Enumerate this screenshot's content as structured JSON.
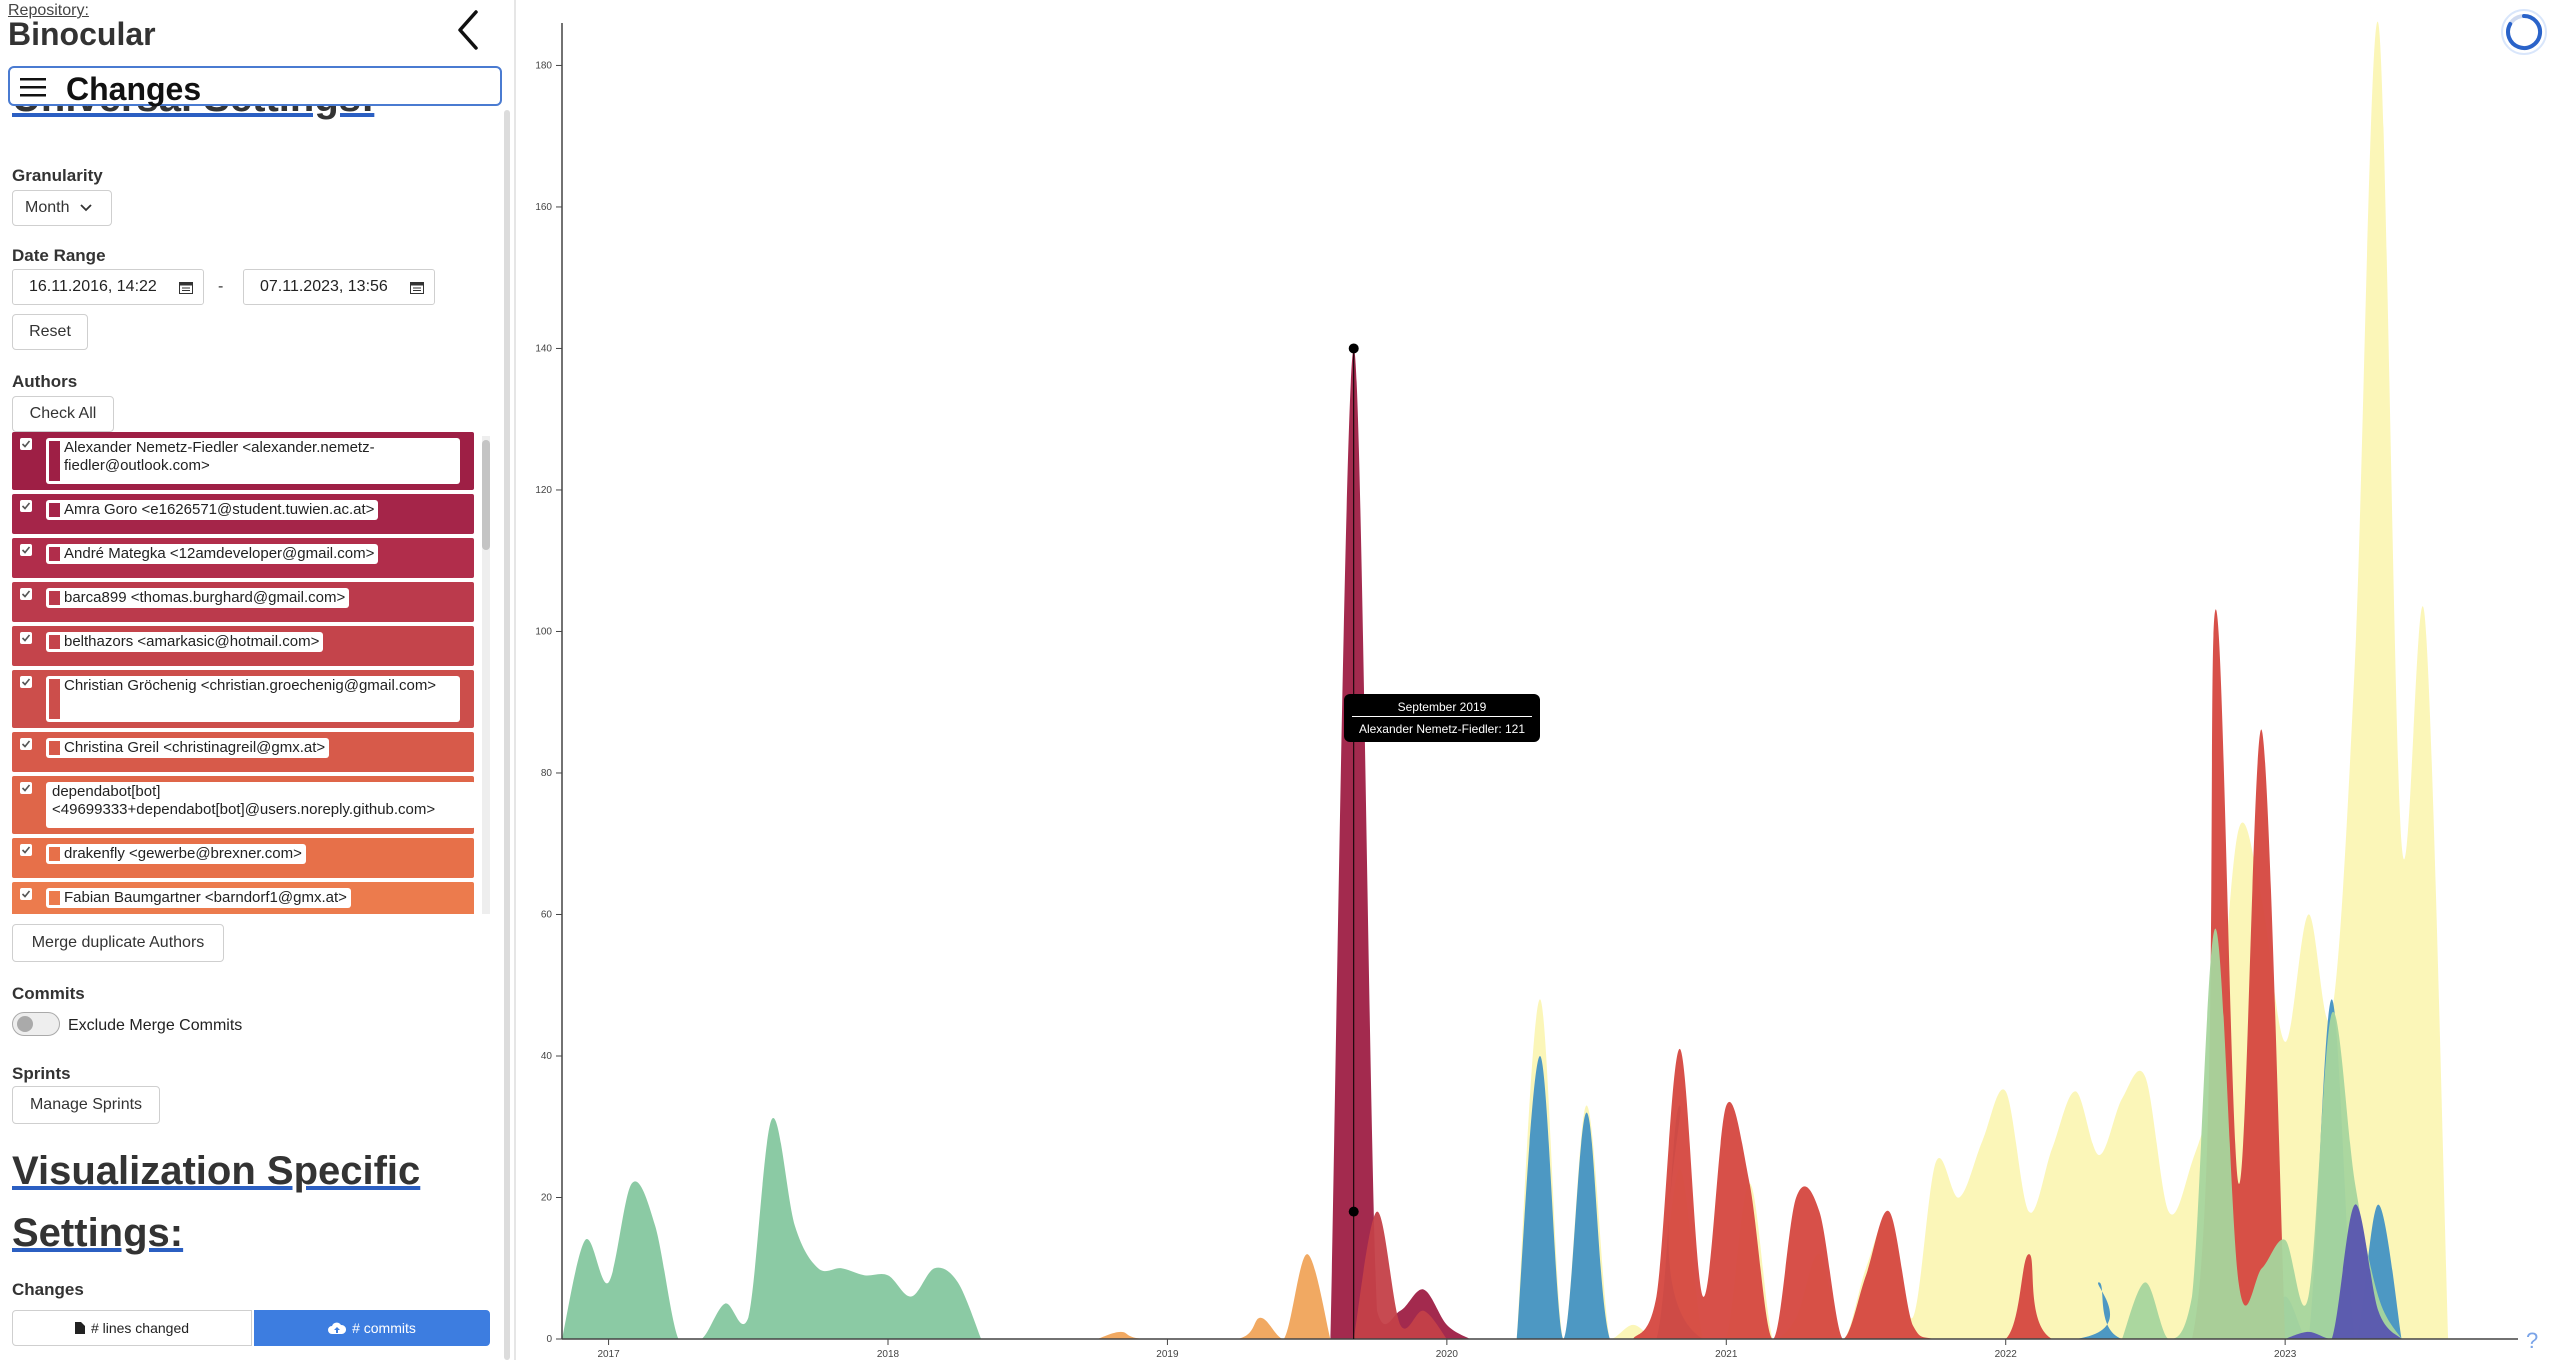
{
  "header": {
    "repository_label": "Repository:",
    "repository_name": "Binocular",
    "page_title": "Changes"
  },
  "universal_settings": {
    "heading": "Universal Settings:",
    "granularity_label": "Granularity",
    "granularity_value": "Month",
    "date_range_label": "Date Range",
    "date_from": "16.11.2016, 14:22",
    "date_separator": "-",
    "date_to": "07.11.2023, 13:56",
    "reset_label": "Reset",
    "authors_label": "Authors",
    "check_all_label": "Check All",
    "authors": [
      {
        "name": "Alexander Nemetz-Fiedler <alexander.nemetz-fiedler@outlook.com>",
        "color": "#9e1f45"
      },
      {
        "name": "Amra Goro <e1626571@student.tuwien.ac.at>",
        "color": "#a52549"
      },
      {
        "name": "André Mategka <12amdeveloper@gmail.com>",
        "color": "#b12d4b"
      },
      {
        "name": "barca899 <thomas.burghard@gmail.com>",
        "color": "#bb3a4c"
      },
      {
        "name": "belthazors <amarkasic@hotmail.com>",
        "color": "#c4444b"
      },
      {
        "name": "Christian Gröchenig <christian.groechenig@gmail.com>",
        "color": "#cc4e4b"
      },
      {
        "name": "Christina Greil <christinagreil@gmx.at>",
        "color": "#d75a4a"
      },
      {
        "name": "dependabot[bot] <49699333+dependabot[bot]@users.noreply.github.com>",
        "color": "#df6649"
      },
      {
        "name": "drakenfly <gewerbe@brexner.com>",
        "color": "#e77049"
      },
      {
        "name": "Fabian Baumgartner <barndorf1@gmx.at>",
        "color": "#ec7b4d"
      }
    ],
    "merge_authors_label": "Merge duplicate Authors",
    "commits_label": "Commits",
    "exclude_merge_label": "Exclude Merge Commits",
    "exclude_merge_on": false,
    "sprints_label": "Sprints",
    "manage_sprints_label": "Manage Sprints"
  },
  "viz_settings": {
    "heading": "Visualization Specific Settings:",
    "changes_label": "Changes",
    "option_lines": "# lines changed",
    "option_commits": "# commits",
    "selected": "# commits"
  },
  "tooltip": {
    "title": "September 2019",
    "entry": "Alexander Nemetz-Fiedler: 121"
  },
  "help_label": "?",
  "colors": {
    "accent": "#4a7bd1",
    "selected_button": "#3d7de0"
  },
  "chart_data": {
    "type": "area",
    "y_ticks": [
      "0",
      "20",
      "40",
      "60",
      "80",
      "100",
      "120",
      "140",
      "160",
      "180"
    ],
    "x_ticks": [
      "2017",
      "2018",
      "2019",
      "2020",
      "2021",
      "2022",
      "2023"
    ],
    "ylim": [
      0,
      186
    ],
    "x_start": "2016-11",
    "x_end": "2023-11",
    "highlight": {
      "x": "2019-09",
      "y_top": 140,
      "y_bottom": 18
    },
    "series": [
      {
        "color": "#85c79f",
        "points": [
          [
            "2016-11",
            0
          ],
          [
            "2016-12",
            14
          ],
          [
            "2017-01",
            8
          ],
          [
            "2017-02",
            22
          ],
          [
            "2017-03",
            16
          ],
          [
            "2017-04",
            0
          ],
          [
            "2017-05",
            0
          ],
          [
            "2017-06",
            5
          ],
          [
            "2017-07",
            3
          ],
          [
            "2017-08",
            31
          ],
          [
            "2017-09",
            16
          ],
          [
            "2017-10",
            10
          ],
          [
            "2017-11",
            10
          ],
          [
            "2017-12",
            9
          ],
          [
            "2018-01",
            9
          ],
          [
            "2018-02",
            6
          ],
          [
            "2018-03",
            10
          ],
          [
            "2018-04",
            8
          ],
          [
            "2018-05",
            0
          ]
        ]
      },
      {
        "color": "#f0a45a",
        "points": [
          [
            "2018-10",
            0
          ],
          [
            "2018-11",
            1
          ],
          [
            "2018-12",
            0
          ],
          [
            "2019-04",
            0
          ],
          [
            "2019-05",
            3
          ],
          [
            "2019-06",
            0
          ],
          [
            "2019-07",
            12
          ],
          [
            "2019-08",
            0
          ]
        ]
      },
      {
        "color": "#9e1f45",
        "points": [
          [
            "2019-08",
            0
          ],
          [
            "2019-09",
            140
          ],
          [
            "2019-10",
            4
          ],
          [
            "2019-11",
            4
          ],
          [
            "2019-12",
            7
          ],
          [
            "2020-01",
            2
          ],
          [
            "2020-02",
            0
          ]
        ]
      },
      {
        "color": "#c44048",
        "points": [
          [
            "2019-09",
            0
          ],
          [
            "2019-10",
            18
          ],
          [
            "2019-11",
            2
          ],
          [
            "2019-12",
            4
          ],
          [
            "2020-01",
            0
          ]
        ]
      },
      {
        "color": "#fbf6b4",
        "points": [
          [
            "2020-04",
            0
          ],
          [
            "2020-05",
            48
          ],
          [
            "2020-06",
            0
          ],
          [
            "2020-07",
            33
          ],
          [
            "2020-08",
            0
          ],
          [
            "2020-09",
            2
          ],
          [
            "2020-10",
            0
          ],
          [
            "2020-11",
            24
          ],
          [
            "2020-12",
            0
          ],
          [
            "2021-01",
            0
          ],
          [
            "2021-02",
            22
          ],
          [
            "2021-03",
            0
          ],
          [
            "2021-04",
            3
          ],
          [
            "2021-05",
            12
          ],
          [
            "2021-06",
            0
          ],
          [
            "2021-07",
            10
          ],
          [
            "2021-08",
            17
          ],
          [
            "2021-09",
            3
          ],
          [
            "2021-10",
            25
          ],
          [
            "2021-11",
            20
          ],
          [
            "2021-12",
            28
          ],
          [
            "2022-01",
            35
          ],
          [
            "2022-02",
            18
          ],
          [
            "2022-03",
            27
          ],
          [
            "2022-04",
            35
          ],
          [
            "2022-05",
            26
          ],
          [
            "2022-06",
            34
          ],
          [
            "2022-07",
            37
          ],
          [
            "2022-08",
            18
          ],
          [
            "2022-09",
            25
          ],
          [
            "2022-10",
            38
          ],
          [
            "2022-11",
            72
          ],
          [
            "2022-12",
            62
          ],
          [
            "2023-01",
            42
          ],
          [
            "2023-02",
            60
          ],
          [
            "2023-03",
            46
          ],
          [
            "2023-04",
            96
          ],
          [
            "2023-05",
            186
          ],
          [
            "2023-06",
            70
          ],
          [
            "2023-07",
            102
          ],
          [
            "2023-08",
            0
          ]
        ]
      },
      {
        "color": "#4392c3",
        "points": [
          [
            "2020-04",
            0
          ],
          [
            "2020-05",
            40
          ],
          [
            "2020-06",
            0
          ],
          [
            "2020-07",
            32
          ],
          [
            "2020-08",
            0
          ],
          [
            "2020-10",
            0
          ],
          [
            "2020-11",
            33
          ],
          [
            "2020-12",
            0
          ],
          [
            "2022-04",
            0
          ],
          [
            "2022-05",
            8
          ],
          [
            "2022-06",
            0
          ],
          [
            "2022-12",
            0
          ],
          [
            "2023-01",
            6
          ],
          [
            "2023-02",
            0
          ],
          [
            "2023-03",
            48
          ],
          [
            "2023-04",
            0
          ],
          [
            "2023-05",
            19
          ],
          [
            "2023-06",
            0
          ]
        ]
      },
      {
        "color": "#d5473f",
        "points": [
          [
            "2020-09",
            0
          ],
          [
            "2020-10",
            6
          ],
          [
            "2020-11",
            41
          ],
          [
            "2020-12",
            6
          ],
          [
            "2021-01",
            33
          ],
          [
            "2021-02",
            22
          ],
          [
            "2021-03",
            0
          ],
          [
            "2021-04",
            20
          ],
          [
            "2021-05",
            18
          ],
          [
            "2021-06",
            0
          ],
          [
            "2021-07",
            9
          ],
          [
            "2021-08",
            18
          ],
          [
            "2021-09",
            2
          ],
          [
            "2021-10",
            0
          ],
          [
            "2022-01",
            0
          ],
          [
            "2022-02",
            12
          ],
          [
            "2022-03",
            0
          ],
          [
            "2022-09",
            0
          ],
          [
            "2022-10",
            103
          ],
          [
            "2022-11",
            22
          ],
          [
            "2022-12",
            86
          ],
          [
            "2023-01",
            0
          ]
        ]
      },
      {
        "color": "#a6d59d",
        "points": [
          [
            "2022-06",
            0
          ],
          [
            "2022-07",
            8
          ],
          [
            "2022-08",
            0
          ],
          [
            "2022-09",
            6
          ],
          [
            "2022-10",
            58
          ],
          [
            "2022-11",
            8
          ],
          [
            "2022-12",
            10
          ],
          [
            "2023-01",
            14
          ],
          [
            "2023-02",
            6
          ],
          [
            "2023-03",
            46
          ],
          [
            "2023-04",
            22
          ],
          [
            "2023-05",
            6
          ],
          [
            "2023-06",
            0
          ]
        ]
      },
      {
        "color": "#5955b0",
        "points": [
          [
            "2023-01",
            0
          ],
          [
            "2023-02",
            1
          ],
          [
            "2023-03",
            0
          ],
          [
            "2023-04",
            19
          ],
          [
            "2023-05",
            4
          ],
          [
            "2023-06",
            0
          ]
        ]
      }
    ]
  }
}
